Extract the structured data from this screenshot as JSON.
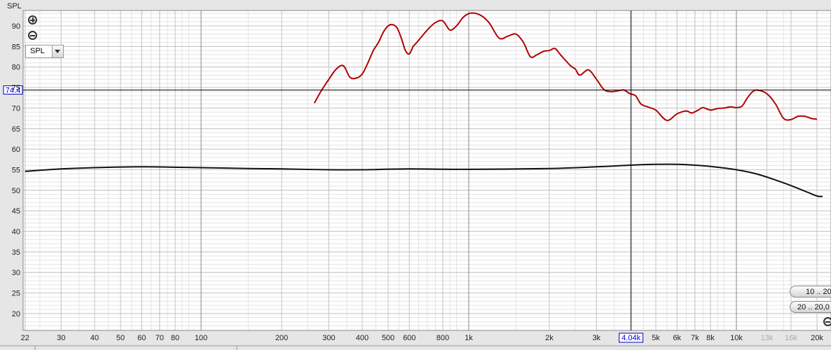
{
  "chart_data": {
    "type": "line",
    "ylabel": "SPL",
    "xscale": "log",
    "xlim": [
      22,
      21000
    ],
    "ylim": [
      17,
      94
    ],
    "grid": true,
    "y_ticks": [
      "90",
      "85",
      "80",
      "75",
      "70",
      "65",
      "60",
      "55",
      "50",
      "45",
      "40",
      "35",
      "30",
      "25",
      "20"
    ],
    "x_ticks": [
      "22",
      "30",
      "40",
      "50",
      "60",
      "70",
      "80",
      "100",
      "200",
      "300",
      "400",
      "500",
      "600",
      "800",
      "1k",
      "2k",
      "3k",
      "5k",
      "6k",
      "7k",
      "8k",
      "10k",
      "13k",
      "16k",
      "20k"
    ],
    "x_tick_values": [
      22,
      30,
      40,
      50,
      60,
      70,
      80,
      100,
      200,
      300,
      400,
      500,
      600,
      800,
      1000,
      2000,
      3000,
      5000,
      6000,
      7000,
      8000,
      10000,
      13000,
      16000,
      20000
    ],
    "cursor": {
      "y_label": "74.4",
      "x_label": "4.04k",
      "y": 74.4,
      "x": 4040
    },
    "series": [
      {
        "color": "#b30000",
        "x": [
          265,
          280,
          300,
          320,
          340,
          360,
          380,
          400,
          420,
          440,
          460,
          480,
          500,
          520,
          540,
          560,
          580,
          600,
          620,
          640,
          700,
          750,
          800,
          850,
          900,
          950,
          1000,
          1050,
          1100,
          1150,
          1200,
          1300,
          1400,
          1500,
          1600,
          1700,
          1800,
          1900,
          2000,
          2100,
          2200,
          2400,
          2500,
          2600,
          2800,
          3000,
          3200,
          3400,
          3600,
          3800,
          4000,
          4200,
          4400,
          4700,
          5000,
          5500,
          6000,
          6500,
          6800,
          7200,
          7500,
          8000,
          8500,
          9000,
          9500,
          10000,
          10500,
          11000,
          11500,
          12000,
          13000,
          14000,
          15000,
          16000,
          17000,
          18000,
          19000,
          20000
        ],
        "y": [
          71.2,
          74,
          77,
          79.5,
          80.3,
          77.5,
          77.3,
          78.3,
          81,
          84,
          86,
          88.5,
          90,
          90.3,
          89.5,
          87,
          84,
          83.2,
          85,
          86,
          89,
          90.8,
          91.2,
          89,
          90,
          92,
          93,
          93.1,
          92.7,
          91.8,
          90.5,
          87,
          87.5,
          88,
          86,
          82.5,
          83,
          83.8,
          84,
          84.5,
          83,
          80.3,
          79.5,
          78,
          79.3,
          77,
          74.5,
          74,
          74.2,
          74.4,
          73.5,
          73,
          71,
          70.2,
          69.5,
          67,
          68.6,
          69.3,
          68.8,
          69.5,
          70.1,
          69.5,
          69.9,
          70,
          70.3,
          70.1,
          70.5,
          72.5,
          74,
          74.4,
          73.5,
          71,
          67.5,
          67.2,
          68,
          68,
          67.5,
          67.3
        ]
      },
      {
        "color": "#111111",
        "x": [
          22,
          30,
          40,
          60,
          80,
          100,
          150,
          200,
          300,
          400,
          600,
          1000,
          2000,
          3000,
          4000,
          5000,
          6000,
          7000,
          8000,
          10000,
          12000,
          15000,
          18000,
          20000,
          21000
        ],
        "y": [
          54.6,
          55.2,
          55.5,
          55.7,
          55.6,
          55.5,
          55.3,
          55.2,
          55,
          55,
          55.2,
          55.1,
          55.3,
          55.7,
          56.1,
          56.3,
          56.3,
          56.1,
          55.8,
          55,
          53.9,
          51.8,
          49.8,
          48.6,
          48.5
        ]
      }
    ]
  },
  "controls": {
    "type_select": "SPL",
    "range_btn_1": "10 .. 20",
    "range_btn_2": "20 .. 20,0"
  }
}
